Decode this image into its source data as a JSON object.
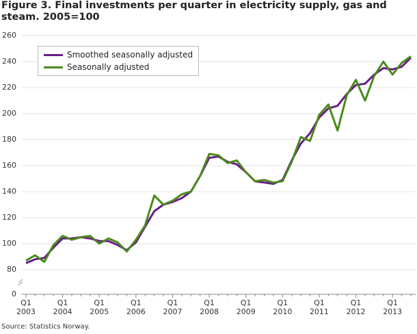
{
  "chart_data": {
    "type": "line",
    "title": "Figure 3. Final investments per quarter in electricity supply, gas and steam. 2005=100",
    "source": "Source: Statistics Norway.",
    "categories": [
      "Q1 2003",
      null,
      null,
      null,
      "Q1 2004",
      null,
      null,
      null,
      "Q1 2005",
      null,
      null,
      null,
      "Q1 2006",
      null,
      null,
      null,
      "Q1 2007",
      null,
      null,
      null,
      "Q1 2008",
      null,
      null,
      null,
      "Q1 2009",
      null,
      null,
      null,
      "Q1 2010",
      null,
      null,
      null,
      "Q1 2011",
      null,
      null,
      null,
      "Q1 2012",
      null,
      null,
      null,
      "Q1 2013",
      null,
      null
    ],
    "series": [
      {
        "name": "Smoothed seasonally adjusted",
        "color": "#6a1b8a",
        "values": [
          85,
          88,
          89,
          97,
          104,
          104,
          105,
          104,
          102,
          102,
          99,
          95,
          101,
          113,
          125,
          130,
          132,
          135,
          140,
          152,
          166,
          167,
          163,
          161,
          155,
          148,
          147,
          146,
          149,
          164,
          177,
          185,
          197,
          204,
          206,
          215,
          222,
          223,
          230,
          235,
          234,
          236,
          243
        ]
      },
      {
        "name": "Seasonally adjusted",
        "color": "#4a8a1c",
        "values": [
          87,
          91,
          86,
          99,
          106,
          103,
          105,
          106,
          100,
          104,
          101,
          94,
          103,
          114,
          137,
          130,
          133,
          138,
          140,
          152,
          169,
          168,
          162,
          164,
          155,
          148,
          149,
          147,
          148,
          163,
          182,
          179,
          199,
          207,
          187,
          214,
          226,
          210,
          229,
          240,
          230,
          239,
          244
        ]
      }
    ],
    "ylim": [
      0,
      260
    ],
    "yticks": [
      0,
      80,
      100,
      120,
      140,
      160,
      180,
      200,
      220,
      240,
      260
    ],
    "axis_break": [
      0,
      80
    ],
    "grid": true,
    "legend": "top-left"
  }
}
